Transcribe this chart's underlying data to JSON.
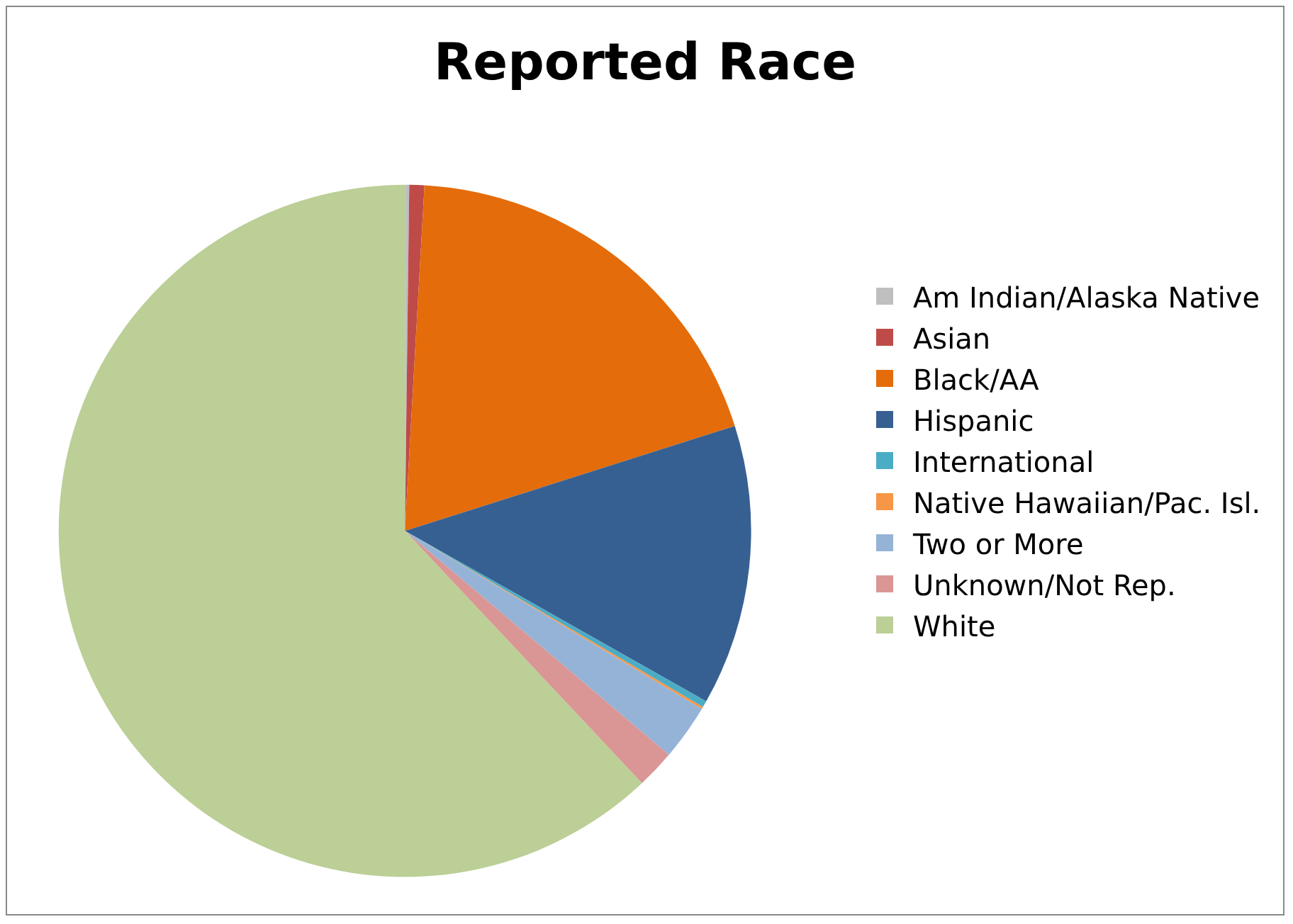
{
  "chart_data": {
    "type": "pie",
    "title": "Reported Race",
    "categories": [
      "Am Indian/Alaska Native",
      "Asian",
      "Black/AA",
      "Hispanic",
      "International",
      "Native Hawaiian/Pac. Isl.",
      "Two or More",
      "Unknown/Not Rep.",
      "White"
    ],
    "values": [
      0.2,
      0.7,
      19.2,
      13.1,
      0.3,
      0.1,
      2.6,
      1.8,
      62.0
    ],
    "colors": [
      "#bfbfbf",
      "#be4b48",
      "#e46c0a",
      "#376092",
      "#4bacc6",
      "#f79646",
      "#95b3d7",
      "#d99694",
      "#bbcf96"
    ],
    "legend": "right"
  }
}
